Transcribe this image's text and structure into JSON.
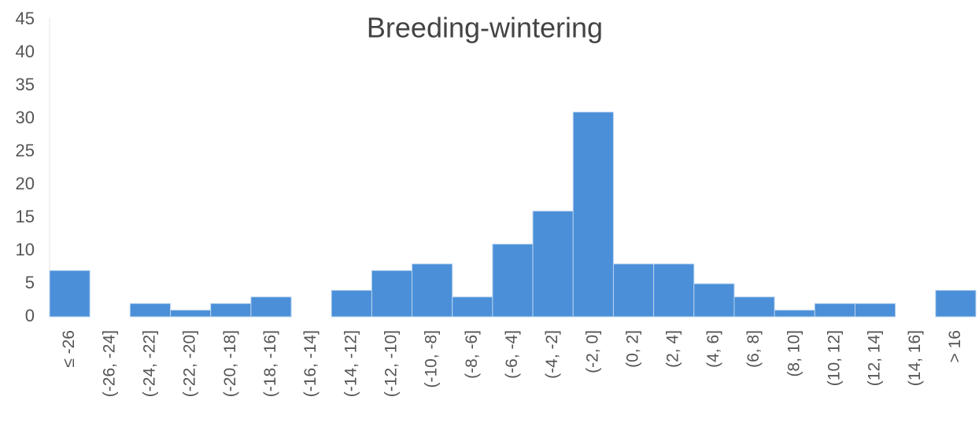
{
  "chart_data": {
    "type": "bar",
    "title": "Breeding-wintering",
    "categories": [
      "≤ -26",
      "(-26, -24]",
      "(-24, -22]",
      "(-22, -20]",
      "(-20, -18]",
      "(-18, -16]",
      "(-16, -14]",
      "(-14, -12]",
      "(-12, -10]",
      "(-10, -8]",
      "(-8, -6]",
      "(-6, -4]",
      "(-4, -2]",
      "(-2, 0]",
      "(0, 2]",
      "(2, 4]",
      "(4, 6]",
      "(6, 8]",
      "(8, 10]",
      "(10, 12]",
      "(12, 14]",
      "(14, 16]",
      "> 16"
    ],
    "values": [
      7,
      0,
      2,
      1,
      2,
      3,
      0,
      4,
      7,
      8,
      3,
      11,
      16,
      31,
      8,
      8,
      5,
      3,
      1,
      2,
      2,
      0,
      4
    ],
    "color": "#4a8fd8",
    "ylim": [
      0,
      45
    ],
    "yticks": [
      0,
      5,
      10,
      15,
      20,
      25,
      30,
      35,
      40,
      45
    ],
    "grid": false
  }
}
